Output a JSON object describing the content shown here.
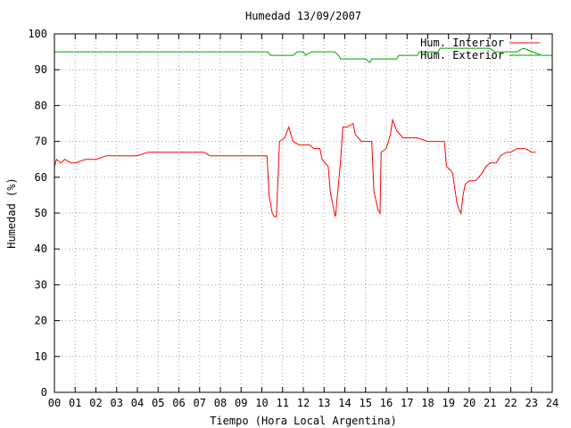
{
  "chart_data": {
    "type": "line",
    "title": "Humedad 13/09/2007",
    "xlabel": "Tiempo (Hora Local Argentina)",
    "ylabel": "Humedad (%)",
    "xlim": [
      0,
      24
    ],
    "ylim": [
      0,
      100
    ],
    "x_ticks": [
      "00",
      "01",
      "02",
      "03",
      "04",
      "05",
      "06",
      "07",
      "08",
      "09",
      "10",
      "11",
      "12",
      "13",
      "14",
      "15",
      "16",
      "17",
      "18",
      "19",
      "20",
      "21",
      "22",
      "23",
      "24"
    ],
    "y_ticks": [
      "0",
      "10",
      "20",
      "30",
      "40",
      "50",
      "60",
      "70",
      "80",
      "90",
      "100"
    ],
    "grid": true,
    "legend_position": "top-right",
    "series": [
      {
        "name": "Hum. Interior",
        "color": "#ff0000",
        "points": [
          [
            0.0,
            63
          ],
          [
            0.1,
            65
          ],
          [
            0.3,
            64
          ],
          [
            0.5,
            65
          ],
          [
            0.8,
            64
          ],
          [
            1.0,
            64
          ],
          [
            1.5,
            65
          ],
          [
            2.0,
            65
          ],
          [
            2.5,
            66
          ],
          [
            3.0,
            66
          ],
          [
            3.5,
            66
          ],
          [
            4.0,
            66
          ],
          [
            4.5,
            67
          ],
          [
            5.0,
            67
          ],
          [
            5.5,
            67
          ],
          [
            6.0,
            67
          ],
          [
            6.5,
            67
          ],
          [
            7.0,
            67
          ],
          [
            7.2,
            67
          ],
          [
            7.5,
            66
          ],
          [
            8.0,
            66
          ],
          [
            9.0,
            66
          ],
          [
            10.0,
            66
          ],
          [
            10.25,
            66
          ],
          [
            10.35,
            55
          ],
          [
            10.5,
            50
          ],
          [
            10.6,
            49
          ],
          [
            10.7,
            49
          ],
          [
            10.85,
            70
          ],
          [
            11.1,
            71
          ],
          [
            11.3,
            74
          ],
          [
            11.5,
            70
          ],
          [
            11.8,
            69
          ],
          [
            12.1,
            69
          ],
          [
            12.3,
            69
          ],
          [
            12.5,
            68
          ],
          [
            12.8,
            68
          ],
          [
            12.9,
            65
          ],
          [
            13.2,
            63
          ],
          [
            13.3,
            56
          ],
          [
            13.5,
            50
          ],
          [
            13.55,
            49
          ],
          [
            13.8,
            65
          ],
          [
            13.9,
            74
          ],
          [
            14.1,
            74
          ],
          [
            14.4,
            75
          ],
          [
            14.5,
            72
          ],
          [
            14.8,
            70
          ],
          [
            15.0,
            70
          ],
          [
            15.3,
            70
          ],
          [
            15.4,
            56
          ],
          [
            15.6,
            51
          ],
          [
            15.7,
            50
          ],
          [
            15.75,
            67
          ],
          [
            16.0,
            68
          ],
          [
            16.2,
            72
          ],
          [
            16.3,
            76
          ],
          [
            16.5,
            73
          ],
          [
            16.8,
            71
          ],
          [
            17.0,
            71
          ],
          [
            17.5,
            71
          ],
          [
            18.0,
            70
          ],
          [
            18.5,
            70
          ],
          [
            18.8,
            70
          ],
          [
            18.9,
            63
          ],
          [
            19.1,
            62
          ],
          [
            19.2,
            61
          ],
          [
            19.4,
            53
          ],
          [
            19.5,
            51
          ],
          [
            19.6,
            50
          ],
          [
            19.7,
            55
          ],
          [
            19.8,
            58
          ],
          [
            20.0,
            59
          ],
          [
            20.3,
            59
          ],
          [
            20.6,
            61
          ],
          [
            20.8,
            63
          ],
          [
            21.0,
            64
          ],
          [
            21.3,
            64
          ],
          [
            21.5,
            66
          ],
          [
            21.8,
            67
          ],
          [
            22.0,
            67
          ],
          [
            22.3,
            68
          ],
          [
            22.7,
            68
          ],
          [
            23.0,
            67
          ],
          [
            23.2,
            67
          ]
        ]
      },
      {
        "name": "Hum. Exterior",
        "color": "#00a000",
        "points": [
          [
            0.0,
            95
          ],
          [
            10.3,
            95
          ],
          [
            10.4,
            94
          ],
          [
            11.5,
            94
          ],
          [
            11.7,
            95
          ],
          [
            12.0,
            95
          ],
          [
            12.1,
            94
          ],
          [
            12.4,
            95
          ],
          [
            13.5,
            95
          ],
          [
            13.7,
            94
          ],
          [
            13.8,
            93
          ],
          [
            15.0,
            93
          ],
          [
            15.2,
            92
          ],
          [
            15.3,
            93
          ],
          [
            16.5,
            93
          ],
          [
            16.6,
            94
          ],
          [
            17.5,
            94
          ],
          [
            17.6,
            95
          ],
          [
            18.5,
            95
          ],
          [
            18.6,
            96
          ],
          [
            21.0,
            96
          ],
          [
            21.2,
            95
          ],
          [
            22.0,
            95
          ],
          [
            22.3,
            95
          ],
          [
            22.6,
            96
          ],
          [
            23.5,
            94
          ],
          [
            24.0,
            94
          ]
        ]
      }
    ]
  }
}
